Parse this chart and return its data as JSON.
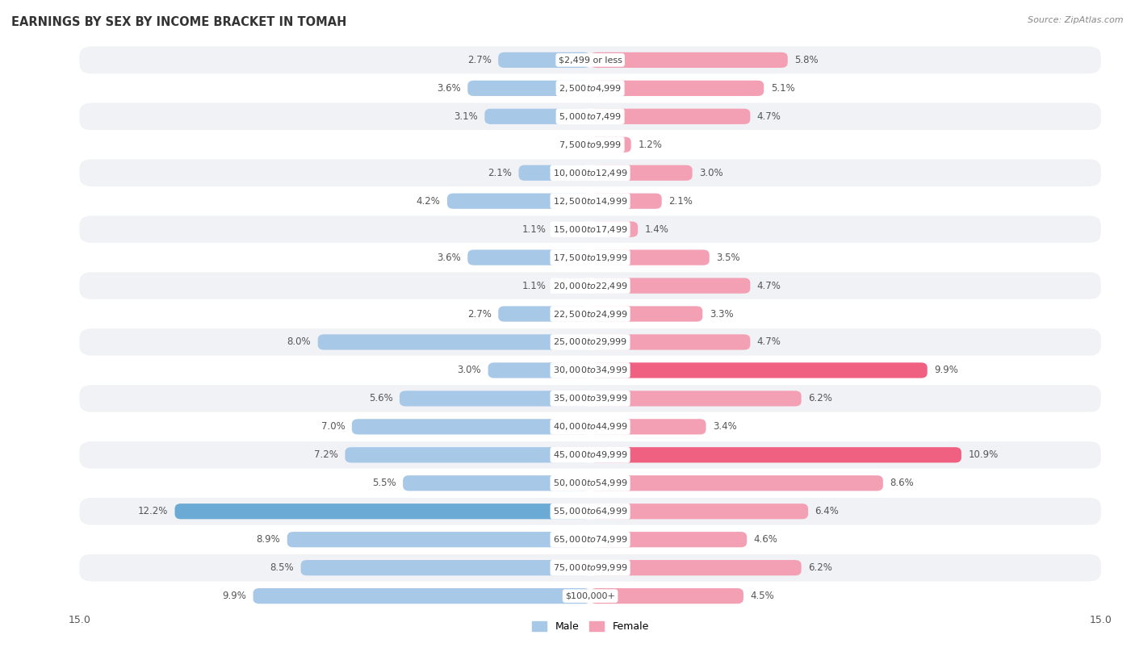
{
  "title": "EARNINGS BY SEX BY INCOME BRACKET IN TOMAH",
  "source": "Source: ZipAtlas.com",
  "categories": [
    "$2,499 or less",
    "$2,500 to $4,999",
    "$5,000 to $7,499",
    "$7,500 to $9,999",
    "$10,000 to $12,499",
    "$12,500 to $14,999",
    "$15,000 to $17,499",
    "$17,500 to $19,999",
    "$20,000 to $22,499",
    "$22,500 to $24,999",
    "$25,000 to $29,999",
    "$30,000 to $34,999",
    "$35,000 to $39,999",
    "$40,000 to $44,999",
    "$45,000 to $49,999",
    "$50,000 to $54,999",
    "$55,000 to $64,999",
    "$65,000 to $74,999",
    "$75,000 to $99,999",
    "$100,000+"
  ],
  "male": [
    2.7,
    3.6,
    3.1,
    0.0,
    2.1,
    4.2,
    1.1,
    3.6,
    1.1,
    2.7,
    8.0,
    3.0,
    5.6,
    7.0,
    7.2,
    5.5,
    12.2,
    8.9,
    8.5,
    9.9
  ],
  "female": [
    5.8,
    5.1,
    4.7,
    1.2,
    3.0,
    2.1,
    1.4,
    3.5,
    4.7,
    3.3,
    4.7,
    9.9,
    6.2,
    3.4,
    10.9,
    8.6,
    6.4,
    4.6,
    6.2,
    4.5
  ],
  "male_color": "#a8c8e8",
  "female_color": "#f4a0b4",
  "male_highlight_color": "#6aaad4",
  "female_highlight_color": "#f06080",
  "bg_color": "#ffffff",
  "row_bg_even": "#f0f2f5",
  "row_bg_odd": "#ffffff",
  "row_border_color": "#d8dce4",
  "xlim": 15.0,
  "bar_height": 0.55,
  "title_fontsize": 10.5,
  "label_fontsize": 8.5,
  "category_fontsize": 8.0
}
